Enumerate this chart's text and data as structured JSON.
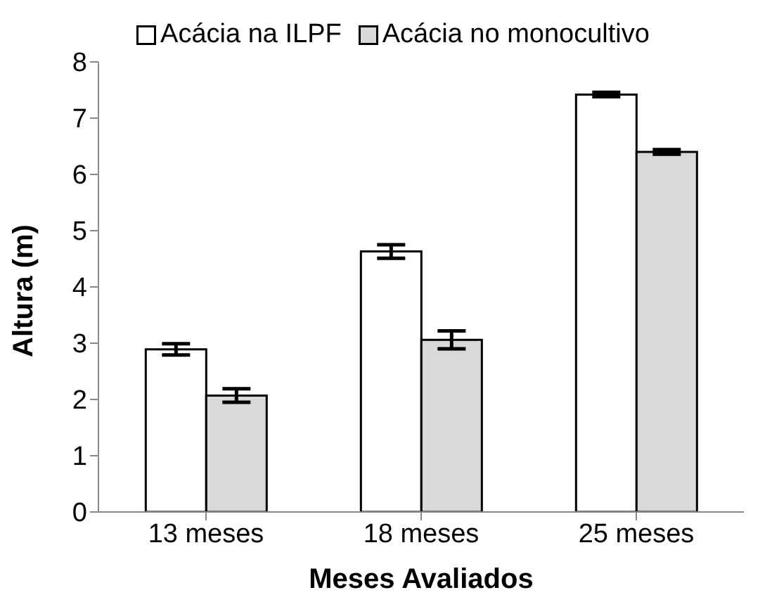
{
  "chart_data": {
    "type": "bar",
    "xlabel": "Meses Avaliados",
    "ylabel": "Altura (m)",
    "categories": [
      "13 meses",
      "18 meses",
      "25 meses"
    ],
    "series": [
      {
        "name": "Acácia na ILPF",
        "color": "#ffffff",
        "values": [
          2.89,
          4.63,
          7.42
        ],
        "errors": [
          0.1,
          0.12,
          0.04
        ]
      },
      {
        "name": "Acácia no monocultivo",
        "color": "#d9d9d9",
        "values": [
          2.07,
          3.06,
          6.4
        ],
        "errors": [
          0.12,
          0.16,
          0.04
        ]
      }
    ],
    "ylim": [
      0,
      8
    ],
    "yticks": [
      0,
      1,
      2,
      3,
      4,
      5,
      6,
      7,
      8
    ],
    "grid": false,
    "legend": "top"
  }
}
